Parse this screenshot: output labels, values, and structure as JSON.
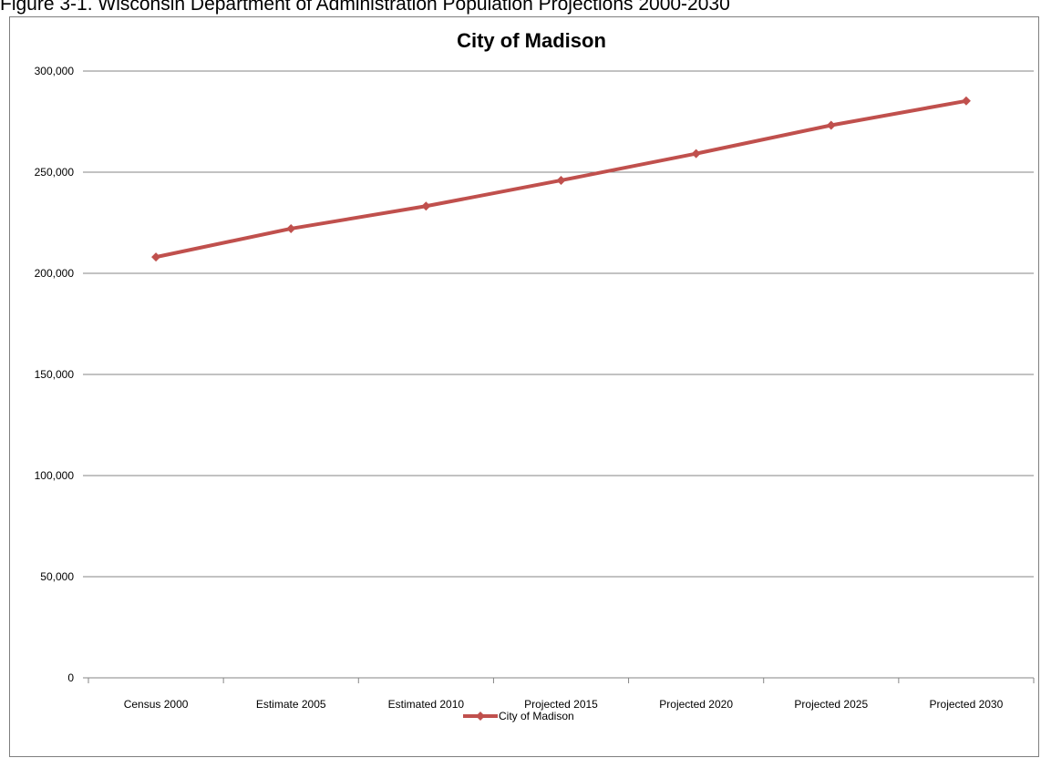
{
  "figure_caption": "Figure 3-1.  Wisconsin Department of Administration Population Projections 2000-2030",
  "chart_data": {
    "type": "line",
    "title": "City of Madison",
    "xlabel": "",
    "ylabel": "",
    "categories": [
      "Census 2000",
      "Estimate 2005",
      "Estimated 2010",
      "Projected 2015",
      "Projected 2020",
      "Projected 2025",
      "Projected 2030"
    ],
    "series": [
      {
        "name": "City of Madison",
        "values": [
          208054,
          222095,
          233209,
          245960,
          259180,
          273205,
          285222
        ],
        "color": "#c0504d",
        "marker": "diamond"
      }
    ],
    "ylim": [
      0,
      300000
    ],
    "yticks": [
      0,
      50000,
      100000,
      150000,
      200000,
      250000,
      300000
    ],
    "ytick_labels": [
      "0",
      "50,000",
      "100,000",
      "150,000",
      "200,000",
      "250,000",
      "300,000"
    ],
    "grid": true,
    "legend": "bottom-center"
  }
}
